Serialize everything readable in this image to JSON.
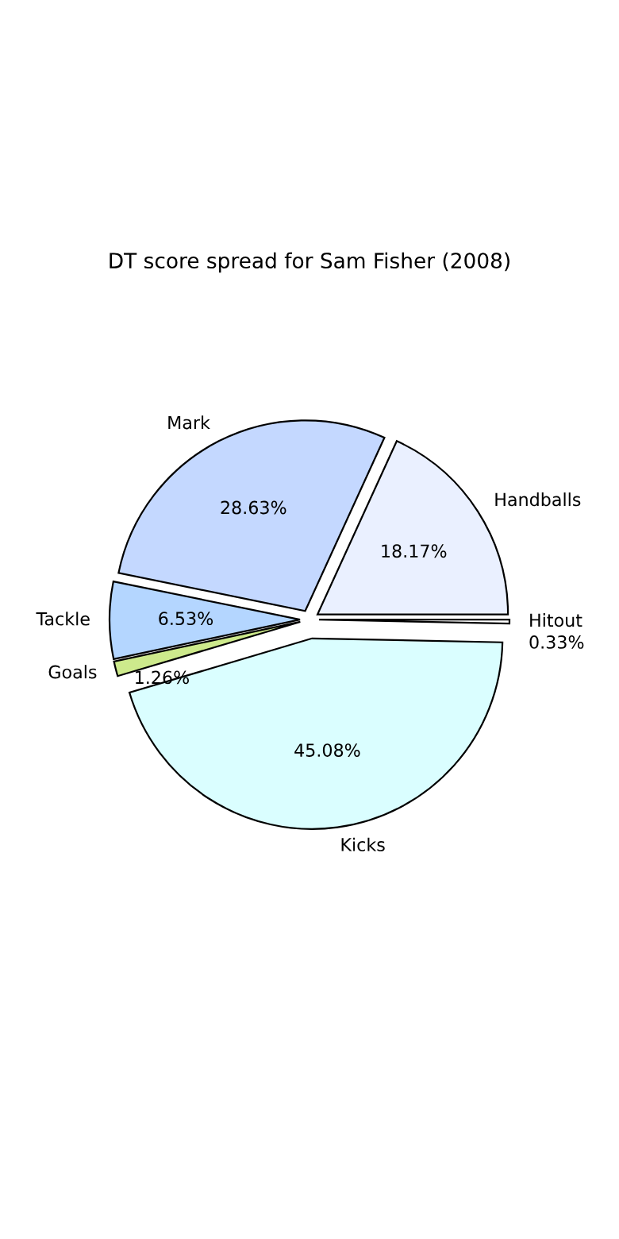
{
  "chart_data": {
    "type": "pie",
    "title": "DT score spread for Sam Fisher (2008)",
    "categories": [
      "Handballs",
      "Mark",
      "Tackle",
      "Goals",
      "Kicks",
      "Hitout"
    ],
    "values": [
      18.17,
      28.63,
      6.53,
      1.26,
      45.08,
      0.33
    ],
    "value_labels": [
      "18.17%",
      "28.63%",
      "6.53%",
      "1.26%",
      "45.08%",
      "0.33%"
    ],
    "colors": [
      "#eaf0ff",
      "#c4d8ff",
      "#b4d6ff",
      "#cdea8c",
      "#dafeff",
      "#ffffff"
    ]
  }
}
